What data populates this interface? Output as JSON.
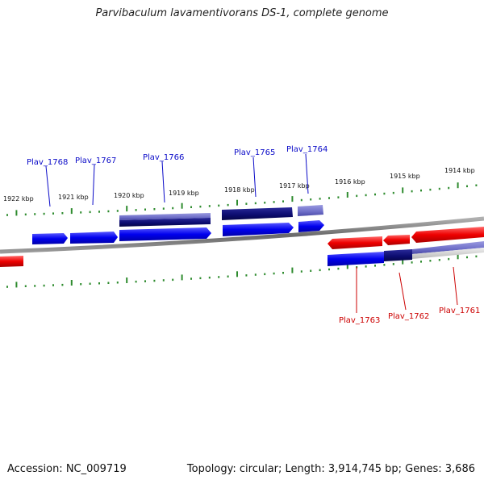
{
  "title": "Parvibaculum lavamentivorans DS-1, complete genome",
  "footer": {
    "accession": "Accession: NC_009719",
    "summary": "Topology: circular; Length: 3,914,745 bp; Genes: 3,686"
  },
  "colors": {
    "forward_gene": "#0a0ae8",
    "reverse_gene": "#e80a0a",
    "forward_label": "#0a0ac8",
    "reverse_label": "#cc0000",
    "ruler_ticks": "#2e8b2e",
    "genome_line": "#7f7f7f",
    "cds_dark": "#0b0b6e",
    "cds_light": "#6e6ec8"
  },
  "ruler": {
    "unit": "kbp",
    "labels": [
      "1922 kbp",
      "1921 kbp",
      "1920 kbp",
      "1919 kbp",
      "1918 kbp",
      "1917 kbp",
      "1916 kbp",
      "1915 kbp",
      "1914 kbp"
    ]
  },
  "genes": [
    {
      "name": "Plav_1768",
      "strand": "forward"
    },
    {
      "name": "Plav_1767",
      "strand": "forward"
    },
    {
      "name": "Plav_1766",
      "strand": "forward"
    },
    {
      "name": "Plav_1765",
      "strand": "forward"
    },
    {
      "name": "Plav_1764",
      "strand": "forward"
    },
    {
      "name": "Plav_1763",
      "strand": "reverse"
    },
    {
      "name": "Plav_1762",
      "strand": "reverse"
    },
    {
      "name": "Plav_1761",
      "strand": "reverse"
    }
  ]
}
